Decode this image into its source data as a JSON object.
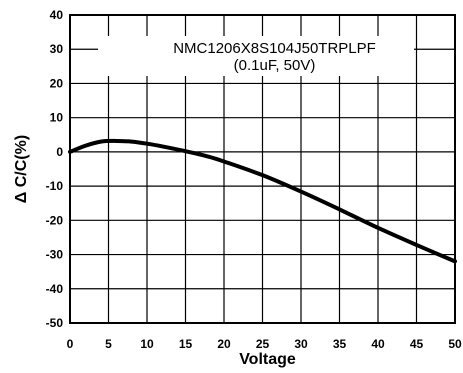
{
  "chart_data": {
    "type": "line",
    "title_lines": [
      "NMC1206X8S104J50TRPLPF",
      "(0.1uF, 50V)"
    ],
    "xlabel": "Voltage",
    "ylabel": "Δ C/C(%)",
    "xlim": [
      0,
      50
    ],
    "ylim": [
      -50,
      40
    ],
    "x_ticks": [
      0,
      5,
      10,
      15,
      20,
      25,
      30,
      35,
      40,
      45,
      50
    ],
    "y_ticks": [
      40,
      30,
      20,
      10,
      0,
      -10,
      -20,
      -30,
      -40,
      -50
    ],
    "x_tick_labels": [
      "0",
      "5",
      "10",
      "15",
      "20",
      "25",
      "30",
      "35",
      "40",
      "45",
      "50"
    ],
    "y_tick_labels": [
      "40",
      "30",
      "20",
      "10",
      "0",
      "-10",
      "-20",
      "-30",
      "-40",
      "-50"
    ],
    "grid": true,
    "line_color": "#000000",
    "series": [
      {
        "x": [
          0,
          2,
          4,
          6,
          8,
          10,
          12,
          15,
          18,
          20,
          25,
          30,
          35,
          40,
          45,
          50
        ],
        "values": [
          0,
          1.8,
          3.0,
          3.2,
          3.0,
          2.4,
          1.6,
          0.2,
          -1.4,
          -2.8,
          -6.8,
          -11.6,
          -16.8,
          -22.2,
          -27.2,
          -32.0
        ]
      }
    ]
  }
}
